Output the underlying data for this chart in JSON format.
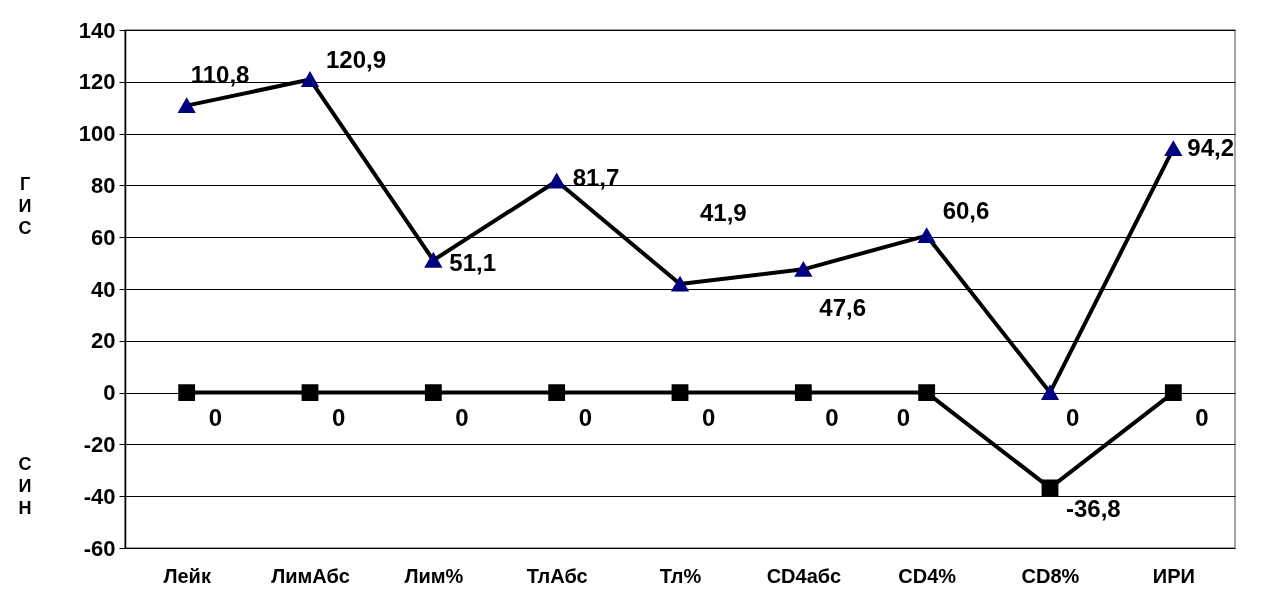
{
  "chart_data": {
    "type": "line",
    "categories": [
      "Лейк",
      "ЛимАбс",
      "Лим%",
      "ТлАбс",
      "Тл%",
      "CD4абс",
      "CD4%",
      "CD8%",
      "ИРИ"
    ],
    "series": [
      {
        "color": "#000080",
        "marker": "triangle",
        "values": [
          110.8,
          120.9,
          51.1,
          81.7,
          41.9,
          47.6,
          60.6,
          0,
          94.2
        ],
        "value_labels": [
          "110,8",
          "120,9",
          "51,1",
          "81,7",
          "41,9",
          "47,6",
          "60,6",
          "0",
          "94,2"
        ]
      },
      {
        "color": "#000000",
        "marker": "square",
        "values": [
          0,
          0,
          0,
          0,
          0,
          0,
          0,
          -36.8,
          0
        ],
        "value_labels": [
          "0",
          "0",
          "0",
          "0",
          "0",
          "0",
          "0",
          "-36,8",
          "0"
        ]
      }
    ],
    "ylabel": "ГИС",
    "annotations": [
      "СИН"
    ],
    "ylim": [
      -60,
      140
    ],
    "yticks": [
      -60,
      -40,
      -20,
      0,
      20,
      40,
      60,
      80,
      100,
      120,
      140
    ],
    "grid": "y",
    "line_style": "solid"
  }
}
